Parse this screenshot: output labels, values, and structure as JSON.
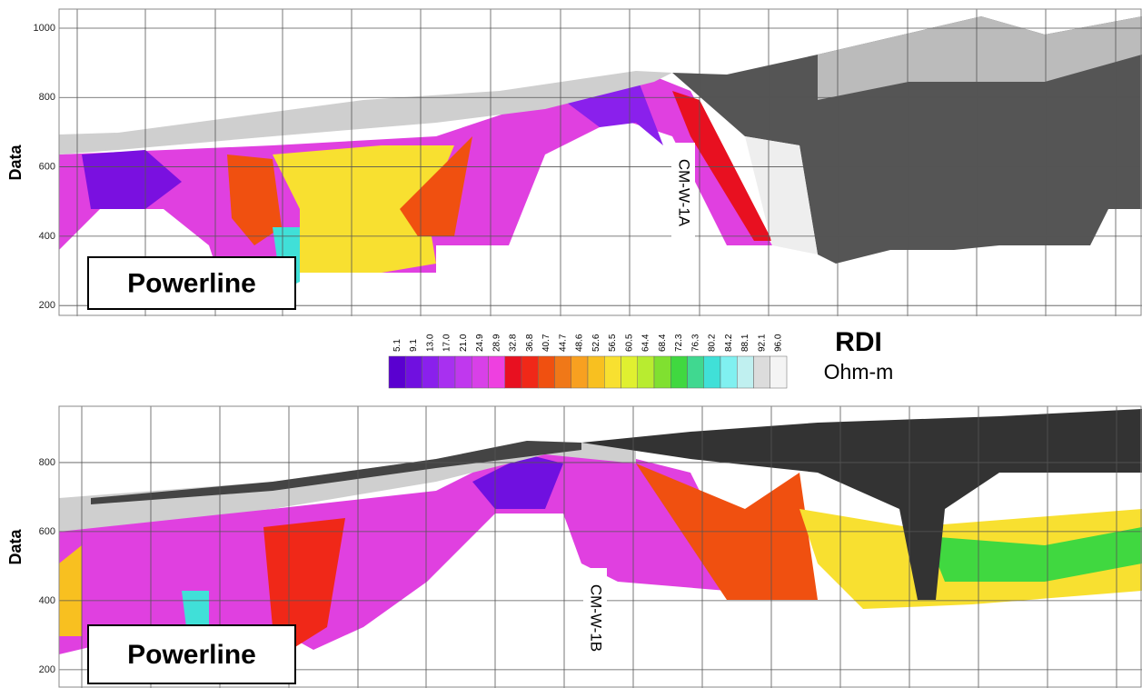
{
  "panels": [
    {
      "ylabel": "Data",
      "ylim": [
        169,
        1055
      ],
      "yticks": [
        200,
        400,
        600,
        800,
        1000
      ],
      "annotation": "CM-W-1A",
      "label": "Powerline"
    },
    {
      "ylabel": "Data",
      "ylim": [
        147,
        963
      ],
      "yticks": [
        200,
        400,
        600,
        800
      ],
      "annotation": "CM-W-1B",
      "label": "Powerline"
    }
  ],
  "colorbar": {
    "title": "RDI",
    "unit": "Ohm-m",
    "labels": [
      "5.1",
      "9.1",
      "13.0",
      "17.0",
      "21.0",
      "24.9",
      "28.9",
      "32.8",
      "36.8",
      "40.7",
      "44.7",
      "48.6",
      "52.6",
      "56.5",
      "60.5",
      "64.4",
      "68.4",
      "72.3",
      "76.3",
      "80.2",
      "84.2",
      "88.1",
      "92.1",
      "96.0"
    ],
    "colors": [
      "#5a00d0",
      "#7010e0",
      "#8a20ec",
      "#a830f0",
      "#c038ee",
      "#d840e8",
      "#ee40e0",
      "#e81020",
      "#f02818",
      "#f05010",
      "#f07818",
      "#f8a020",
      "#f8c020",
      "#f8e030",
      "#e0f030",
      "#b8ec30",
      "#80e030",
      "#40d840",
      "#40d890",
      "#40e0d8",
      "#80f0f0",
      "#c0f0f0",
      "#dcdcdc",
      "#f4f4f4"
    ]
  }
}
